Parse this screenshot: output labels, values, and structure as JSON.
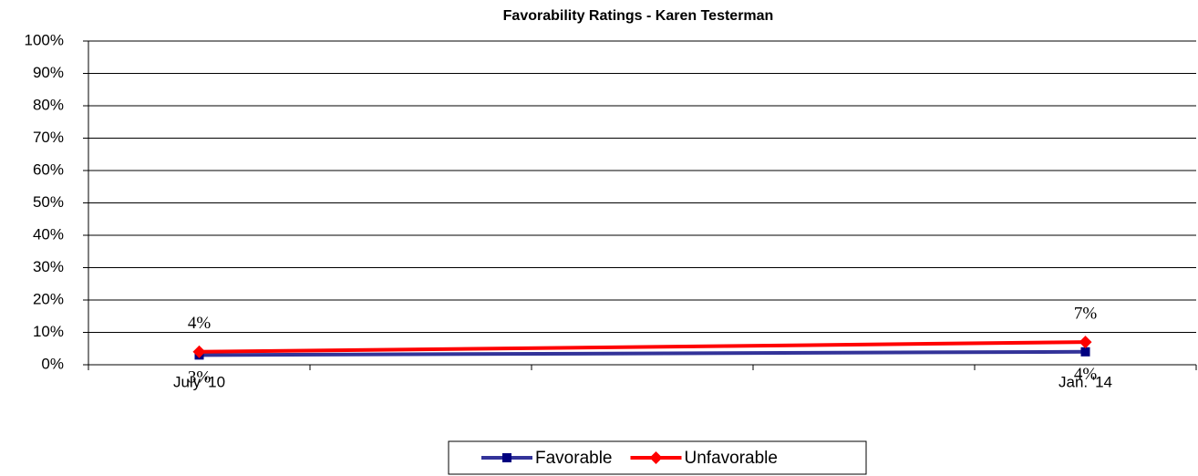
{
  "chart_data": {
    "type": "line",
    "title": "Favorability Ratings - Karen Testerman",
    "categories": [
      "July '10",
      null,
      null,
      null,
      "Jan. '14"
    ],
    "series": [
      {
        "name": "Favorable",
        "color": "#333399",
        "marker_color": "#000080",
        "marker": "square",
        "values": [
          3,
          null,
          null,
          null,
          4
        ],
        "value_labels": [
          "3%",
          null,
          null,
          null,
          "4%"
        ],
        "label_position": "below"
      },
      {
        "name": "Unfavorable",
        "color": "#ff0000",
        "marker_color": "#ff0000",
        "marker": "diamond",
        "values": [
          4,
          null,
          null,
          null,
          7
        ],
        "value_labels": [
          "4%",
          null,
          null,
          null,
          "7%"
        ],
        "label_position": "above"
      }
    ],
    "connect_gaps": true,
    "ylim": [
      0,
      100
    ],
    "yticks": [
      {
        "value": 0,
        "label": "0%"
      },
      {
        "value": 10,
        "label": "10%"
      },
      {
        "value": 20,
        "label": "20%"
      },
      {
        "value": 30,
        "label": "30%"
      },
      {
        "value": 40,
        "label": "40%"
      },
      {
        "value": 50,
        "label": "50%"
      },
      {
        "value": 60,
        "label": "60%"
      },
      {
        "value": 70,
        "label": "70%"
      },
      {
        "value": 80,
        "label": "80%"
      },
      {
        "value": 90,
        "label": "90%"
      },
      {
        "value": 100,
        "label": "100%"
      }
    ],
    "grid": true,
    "legend": "bottom"
  }
}
